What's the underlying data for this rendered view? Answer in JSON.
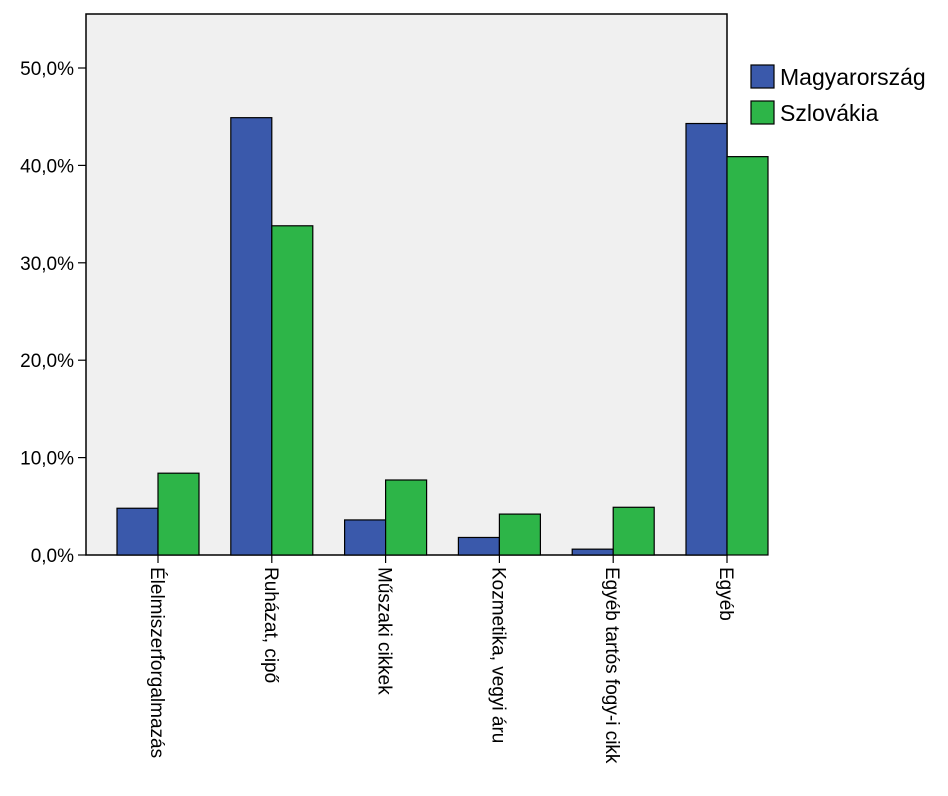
{
  "chart_data": {
    "type": "bar",
    "categories": [
      "Élelmiszerforgalmazás",
      "Ruházat, cipő",
      "Műszaki cikkek",
      "Kozmetika, vegyi áru",
      "Egyéb tartós fogy-i cikk",
      "Egyéb"
    ],
    "series": [
      {
        "name": "Magyarország",
        "color": "#3a59ab",
        "values": [
          4.8,
          44.9,
          3.6,
          1.8,
          0.6,
          44.3
        ]
      },
      {
        "name": "Szlovákia",
        "color": "#2db548",
        "values": [
          8.4,
          33.8,
          7.7,
          4.2,
          4.9,
          40.9
        ]
      }
    ],
    "yticks": [
      "0,0%",
      "10,0%",
      "20,0%",
      "30,0%",
      "40,0%",
      "50,0%"
    ],
    "ylim": [
      0,
      50
    ],
    "title": "",
    "xlabel": "",
    "ylabel": "",
    "legend_position": "right",
    "plot_background": "#f0f0f0",
    "grid": false
  }
}
